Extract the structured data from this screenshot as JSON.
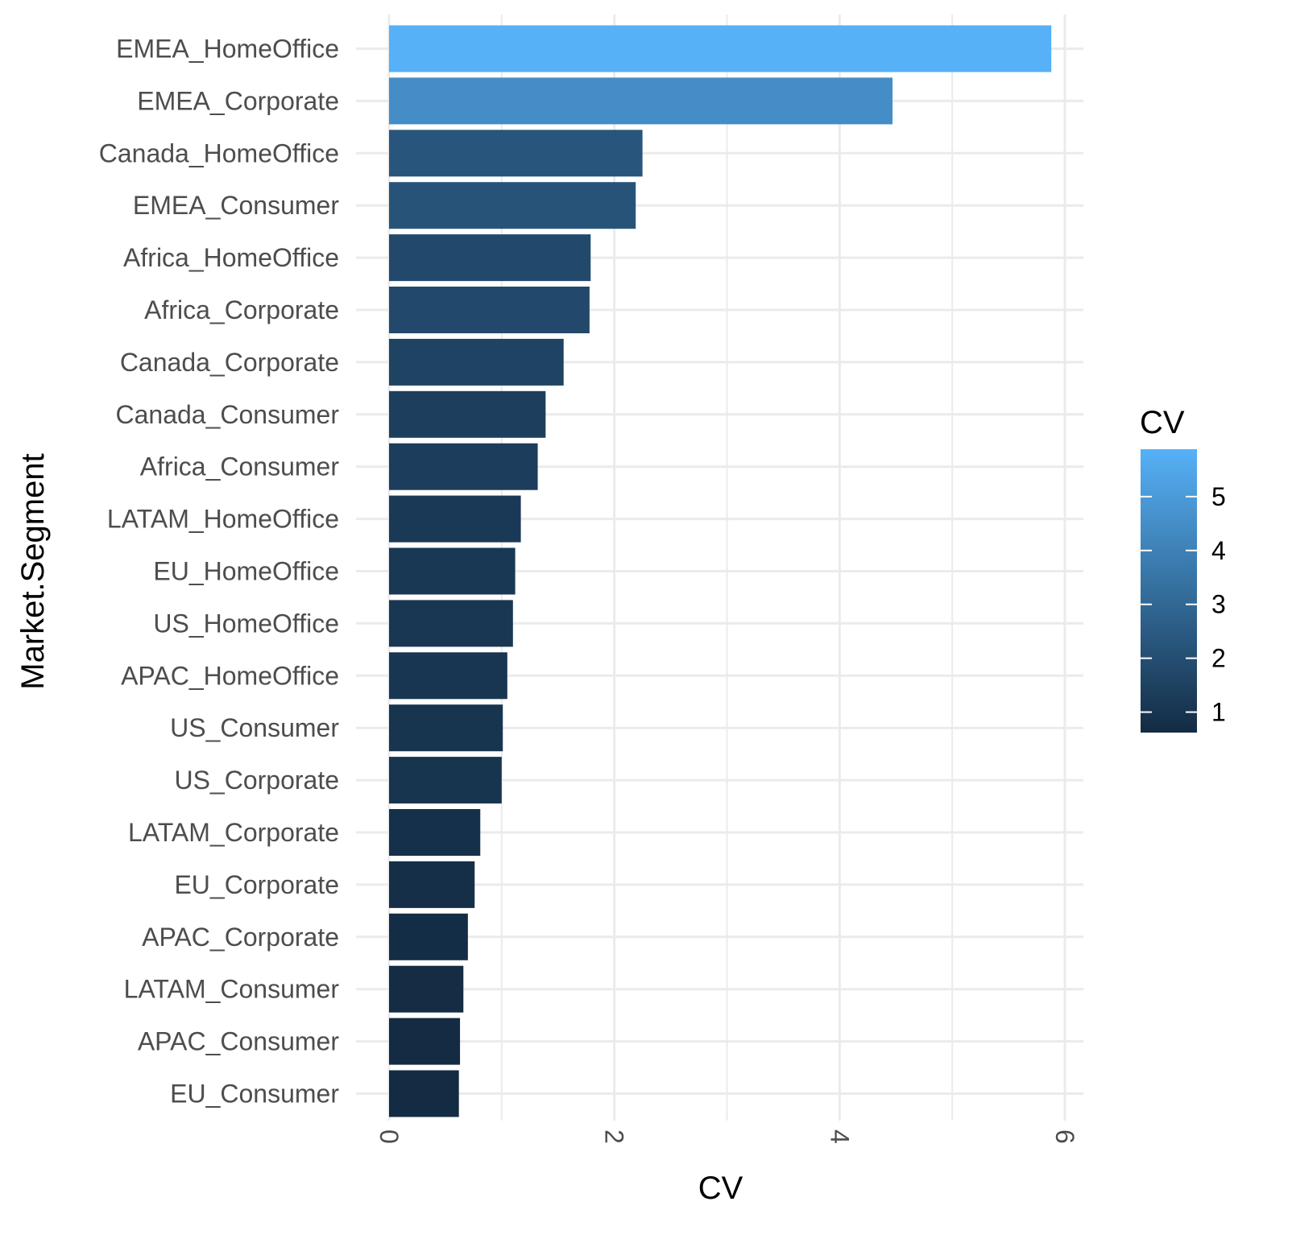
{
  "chart_data": {
    "type": "bar",
    "orientation": "horizontal",
    "xlabel": "CV",
    "ylabel": "Market.Segment",
    "xlim": [
      0,
      6
    ],
    "x_major_ticks": [
      0,
      2,
      4,
      6
    ],
    "x_tick_labels": [
      "0",
      "2",
      "4",
      "6"
    ],
    "x_minor_gridlines": [
      1,
      3,
      5
    ],
    "grid": true,
    "categories": [
      "EMEA_HomeOffice",
      "EMEA_Corporate",
      "Canada_HomeOffice",
      "EMEA_Consumer",
      "Africa_HomeOffice",
      "Africa_Corporate",
      "Canada_Corporate",
      "Canada_Consumer",
      "Africa_Consumer",
      "LATAM_HomeOffice",
      "EU_HomeOffice",
      "US_HomeOffice",
      "APAC_HomeOffice",
      "US_Consumer",
      "US_Corporate",
      "LATAM_Corporate",
      "EU_Corporate",
      "APAC_Corporate",
      "LATAM_Consumer",
      "APAC_Consumer",
      "EU_Consumer"
    ],
    "values": [
      5.88,
      4.47,
      2.25,
      2.19,
      1.79,
      1.78,
      1.55,
      1.39,
      1.32,
      1.17,
      1.12,
      1.1,
      1.05,
      1.01,
      1.0,
      0.81,
      0.76,
      0.7,
      0.66,
      0.63,
      0.62
    ],
    "legend": {
      "title": "CV",
      "position": "right",
      "type": "colorbar",
      "ticks": [
        1,
        2,
        3,
        4,
        5
      ],
      "tick_labels": [
        "1",
        "2",
        "3",
        "4",
        "5"
      ],
      "range": [
        0.62,
        5.88
      ],
      "low_color": "#132B43",
      "high_color": "#56B1F7"
    },
    "colors": {
      "grid": "#ebebeb",
      "background": "#ffffff"
    }
  }
}
